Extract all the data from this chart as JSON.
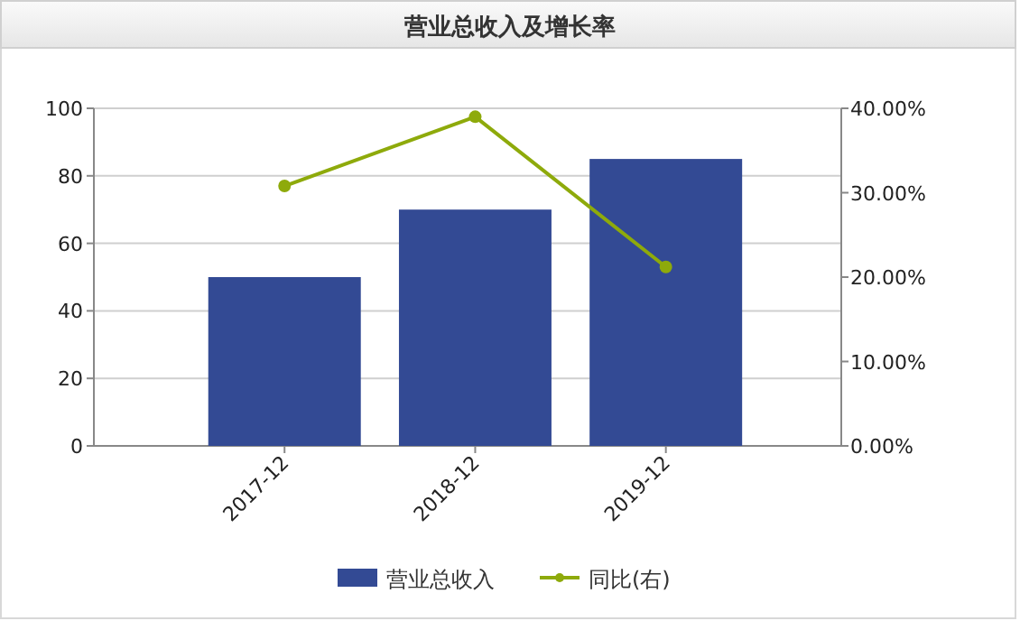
{
  "chart_data": {
    "type": "bar",
    "title": "营业总收入及增长率",
    "categories": [
      "2017-12",
      "2018-12",
      "2019-12"
    ],
    "series": [
      {
        "name": "营业总收入",
        "color": "#334a94",
        "values": [
          50,
          70,
          85
        ]
      },
      {
        "name": "同比(右)",
        "type": "line",
        "axis": "y2",
        "color": "#8eaa0b",
        "marker": "circle",
        "line_style": "solid",
        "values": [
          30.8,
          39.0,
          21.2
        ]
      }
    ],
    "ylim": [
      0,
      100
    ],
    "yticks": [
      0,
      20,
      40,
      60,
      80,
      100
    ],
    "y2lim": [
      0,
      40
    ],
    "y2ticks": [
      {
        "value": 0,
        "label": "0.00%"
      },
      {
        "value": 10,
        "label": "10.00%"
      },
      {
        "value": 20,
        "label": "20.00%"
      },
      {
        "value": 30,
        "label": "30.00%"
      },
      {
        "value": 40,
        "label": "40.00%"
      }
    ],
    "grid": "y",
    "legend": "bottom"
  }
}
